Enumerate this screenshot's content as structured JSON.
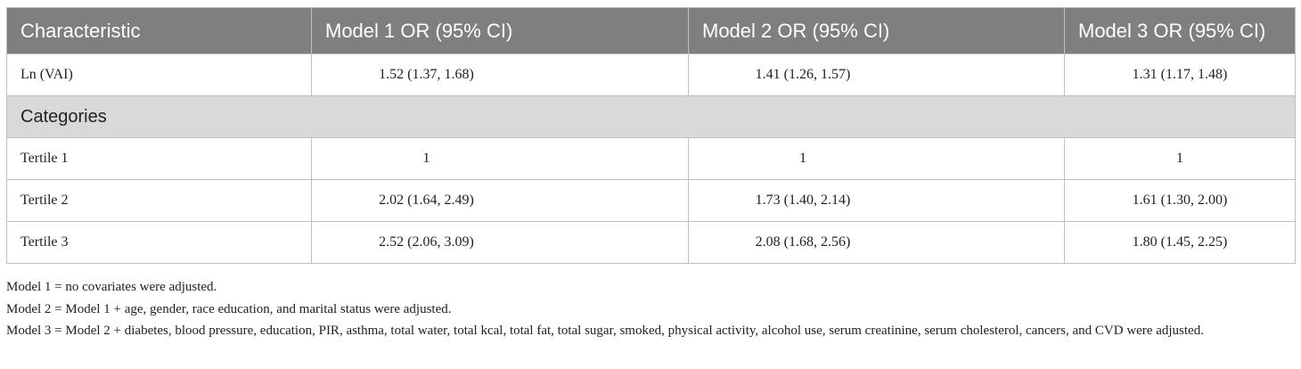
{
  "table": {
    "header": [
      "Characteristic",
      "Model 1 OR (95% CI)",
      "Model 2 OR (95% CI)",
      "Model 3 OR (95% CI)"
    ],
    "rows": [
      [
        "Ln (VAI)",
        "1.52 (1.37, 1.68)",
        "1.41 (1.26, 1.57)",
        "1.31 (1.17, 1.48)"
      ],
      [
        "Categories"
      ],
      [
        "Tertile 1",
        "1",
        "1",
        "1"
      ],
      [
        "Tertile 2",
        "2.02 (1.64, 2.49)",
        "1.73 (1.40, 2.14)",
        "1.61 (1.30, 2.00)"
      ],
      [
        "Tertile 3",
        "2.52 (2.06, 3.09)",
        "2.08 (1.68, 2.56)",
        "1.80 (1.45, 2.25)"
      ]
    ]
  },
  "footnotes": [
    "Model 1 = no covariates were adjusted.",
    "Model 2 = Model 1 + age, gender, race education, and marital status were adjusted.",
    "Model 3 = Model 2 + diabetes, blood pressure, education, PIR, asthma, total water, total kcal, total fat, total sugar, smoked, physical activity, alcohol use, serum creatinine, serum cholesterol, cancers, and CVD were adjusted."
  ]
}
